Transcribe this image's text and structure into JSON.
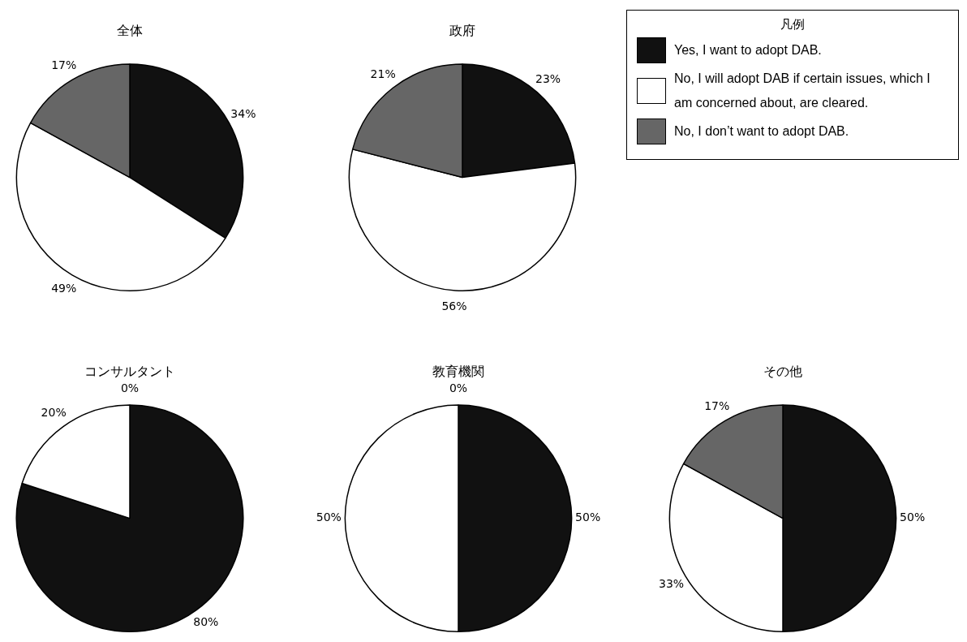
{
  "chart_data": [
    {
      "type": "pie",
      "title": "全体",
      "categories": [
        null,
        null,
        null
      ],
      "values": [
        34,
        49,
        17
      ],
      "value_labels": [
        "34%",
        "49%",
        "17%"
      ],
      "colors": [
        "#111111",
        "#ffffff",
        "#666666"
      ],
      "legend": false
    },
    {
      "type": "pie",
      "title": "政府",
      "categories": [
        "Yes, I want to adopt DAB.",
        "No, I will adopt DAB if certain issues, which I am concerned about, are cleared.",
        "No, I don’t want to adopt DAB."
      ],
      "values": [
        23,
        56,
        21
      ],
      "value_labels": [
        "23%",
        "56%",
        "21%"
      ],
      "colors": [
        "#111111",
        "#ffffff",
        "#666666"
      ],
      "legend": "right",
      "legend_title": "凡例"
    },
    {
      "type": "pie",
      "title": "コンサルタント",
      "categories": [
        null,
        null,
        null
      ],
      "values": [
        80,
        20,
        0
      ],
      "value_labels": [
        "80%",
        "20%",
        "0%"
      ],
      "colors": [
        "#111111",
        "#ffffff",
        "#666666"
      ],
      "legend": false
    },
    {
      "type": "pie",
      "title": "教育機関",
      "categories": [
        null,
        null,
        null
      ],
      "values": [
        50,
        50,
        0
      ],
      "value_labels": [
        "50%",
        "50%",
        "0%"
      ],
      "colors": [
        "#111111",
        "#ffffff",
        "#666666"
      ],
      "legend": false
    },
    {
      "type": "pie",
      "title": "その他",
      "categories": [
        null,
        null,
        null
      ],
      "values": [
        50,
        33,
        17
      ],
      "value_labels": [
        "50%",
        "33%",
        "17%"
      ],
      "colors": [
        "#111111",
        "#ffffff",
        "#666666"
      ],
      "legend": false
    }
  ]
}
